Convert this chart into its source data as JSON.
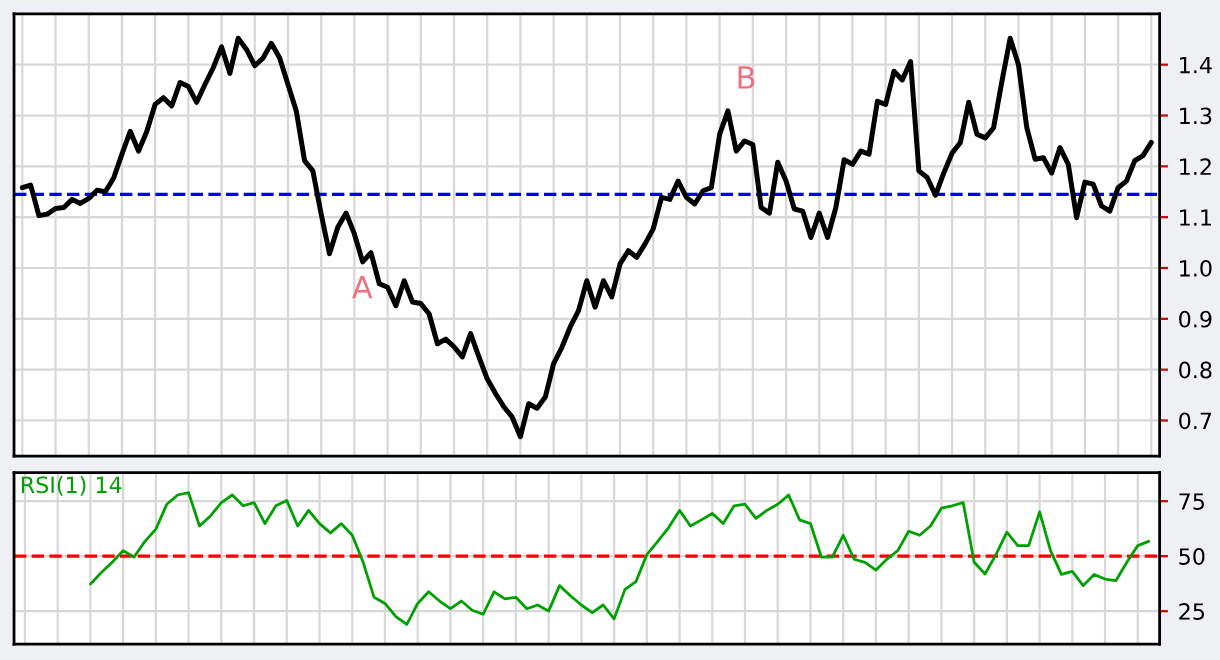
{
  "chart_data": [
    {
      "type": "line",
      "categories": [
        null,
        null,
        null,
        null,
        null,
        null,
        null,
        null,
        null,
        null,
        null,
        null,
        null,
        null,
        null,
        null,
        null,
        null,
        null,
        null,
        null,
        null,
        null,
        null,
        null,
        null,
        null,
        null,
        null,
        null,
        null,
        null,
        null,
        null,
        null,
        null,
        null,
        null,
        null,
        null,
        null,
        null,
        null,
        null,
        null,
        null,
        null,
        null,
        null,
        null,
        null,
        null,
        null,
        null,
        null,
        null,
        null,
        null,
        null,
        null,
        null,
        null,
        null,
        null,
        null,
        null,
        null,
        null,
        null,
        null,
        null,
        null,
        null,
        null,
        null,
        null,
        null,
        null,
        null,
        null,
        null,
        null,
        null,
        null,
        null,
        null,
        null,
        null,
        null,
        null,
        null,
        null,
        null,
        null,
        null,
        null,
        null,
        null,
        null,
        null,
        null,
        null,
        null,
        null,
        null,
        null,
        null,
        null,
        null,
        null,
        null,
        null,
        null,
        null,
        null,
        null,
        null,
        null,
        null,
        null,
        null,
        null,
        null,
        null,
        null,
        null,
        null,
        null,
        null,
        null,
        null,
        null,
        null,
        null,
        null,
        null,
        null
      ],
      "series": [
        {
          "color": "#000000",
          "values": [
            1.158,
            1.163,
            1.103,
            1.106,
            1.117,
            1.119,
            1.135,
            1.127,
            1.137,
            1.153,
            1.15,
            1.177,
            1.224,
            1.269,
            1.23,
            1.269,
            1.322,
            1.335,
            1.319,
            1.365,
            1.357,
            1.326,
            1.361,
            1.394,
            1.435,
            1.383,
            1.452,
            1.43,
            1.398,
            1.413,
            1.442,
            1.413,
            1.361,
            1.309,
            1.211,
            1.191,
            1.106,
            1.028,
            1.08,
            1.108,
            1.067,
            1.012,
            1.03,
            0.969,
            0.962,
            0.926,
            0.975,
            0.933,
            0.93,
            0.91,
            0.851,
            0.86,
            0.845,
            0.825,
            0.871,
            0.825,
            0.782,
            0.753,
            0.727,
            0.707,
            0.668,
            0.733,
            0.724,
            0.746,
            0.812,
            0.844,
            0.884,
            0.916,
            0.975,
            0.923,
            0.975,
            0.943,
            1.008,
            1.034,
            1.021,
            1.047,
            1.077,
            1.139,
            1.135,
            1.171,
            1.139,
            1.126,
            1.152,
            1.158,
            1.263,
            1.309,
            1.23,
            1.25,
            1.243,
            1.119,
            1.108,
            1.208,
            1.171,
            1.116,
            1.112,
            1.06,
            1.108,
            1.06,
            1.119,
            1.213,
            1.204,
            1.23,
            1.224,
            1.328,
            1.322,
            1.387,
            1.37,
            1.406,
            1.191,
            1.178,
            1.143,
            1.187,
            1.226,
            1.247,
            1.326,
            1.263,
            1.256,
            1.276,
            1.367,
            1.452,
            1.4,
            1.276,
            1.214,
            1.217,
            1.187,
            1.237,
            1.204,
            1.099,
            1.169,
            1.165,
            1.122,
            1.112,
            1.158,
            1.171,
            1.211,
            1.221,
            1.247
          ]
        }
      ],
      "ylim": [
        0.63,
        1.5
      ],
      "yticks": [
        0.7,
        0.8,
        0.9,
        {
          "value": 1,
          "label": "1.0"
        },
        1.1,
        1.2,
        1.3,
        1.4
      ],
      "ref_lines": [
        {
          "axis": "y",
          "value": 1.145,
          "color": "#0000ff",
          "line_style": "dashed"
        }
      ],
      "annotations": [
        "A",
        "B"
      ],
      "grid": true,
      "tick_labels": "y",
      "line_style": "solid",
      "marker": "none"
    },
    {
      "type": "line",
      "categories": [
        null,
        null,
        null,
        null,
        null,
        null,
        null,
        null,
        null,
        null,
        null,
        null,
        null,
        null,
        null,
        null,
        null,
        null,
        null,
        null,
        null,
        null,
        null,
        null,
        null,
        null,
        null,
        null,
        null,
        null,
        null,
        null,
        null,
        null,
        null,
        null,
        null,
        null,
        null,
        null,
        null,
        null,
        null,
        null,
        null,
        null,
        null,
        null,
        null,
        null,
        null,
        null,
        null,
        null,
        null,
        null,
        null,
        null,
        null,
        null,
        null,
        null,
        null,
        null,
        null,
        null,
        null,
        null,
        null,
        null,
        null,
        null,
        null,
        null,
        null,
        null,
        null,
        null,
        null,
        null,
        null,
        null,
        null,
        null,
        null,
        null,
        null,
        null,
        null,
        null,
        null,
        null,
        null,
        null,
        null,
        null,
        null,
        null,
        null,
        null,
        null,
        null,
        null,
        null
      ],
      "series": [
        {
          "name": "RSI(1) 14",
          "color": "#00a000",
          "values": [
            null,
            null,
            null,
            null,
            null,
            null,
            37.3,
            42.6,
            47.2,
            52.5,
            49.6,
            56.7,
            62.3,
            73.6,
            77.8,
            78.9,
            63.7,
            68.3,
            74.3,
            77.8,
            72.9,
            74.3,
            64.8,
            72.9,
            75.3,
            63.7,
            70.8,
            64.8,
            60.6,
            64.8,
            59.5,
            47.2,
            31.3,
            28.5,
            22.5,
            19.0,
            28.5,
            33.8,
            29.6,
            26.1,
            29.6,
            25.4,
            23.6,
            33.8,
            30.6,
            31.3,
            26.1,
            27.8,
            25.0,
            36.6,
            32.0,
            27.8,
            24.3,
            27.8,
            21.5,
            34.9,
            38.4,
            50.7,
            56.7,
            63.0,
            70.8,
            63.7,
            66.5,
            69.4,
            64.8,
            72.9,
            73.6,
            67.2,
            70.8,
            73.6,
            77.8,
            66.5,
            64.8,
            49.6,
            49.6,
            59.5,
            48.6,
            47.2,
            43.7,
            48.6,
            52.5,
            61.3,
            59.5,
            63.7,
            71.8,
            72.9,
            74.3,
            47.2,
            41.9,
            50.7,
            60.9,
            54.8,
            54.8,
            70.1,
            52.5,
            41.7,
            43.1,
            36.6,
            41.7,
            39.6,
            38.9,
            47.2,
            54.8,
            56.7
          ]
        }
      ],
      "ylim": [
        10,
        88
      ],
      "yticks": [
        25,
        50,
        75
      ],
      "ref_lines": [
        {
          "axis": "y",
          "value": 50,
          "color": "#ff0000",
          "line_style": "dashed"
        }
      ],
      "grid": true,
      "tick_labels": "y",
      "line_style": "solid",
      "marker": "none"
    }
  ]
}
